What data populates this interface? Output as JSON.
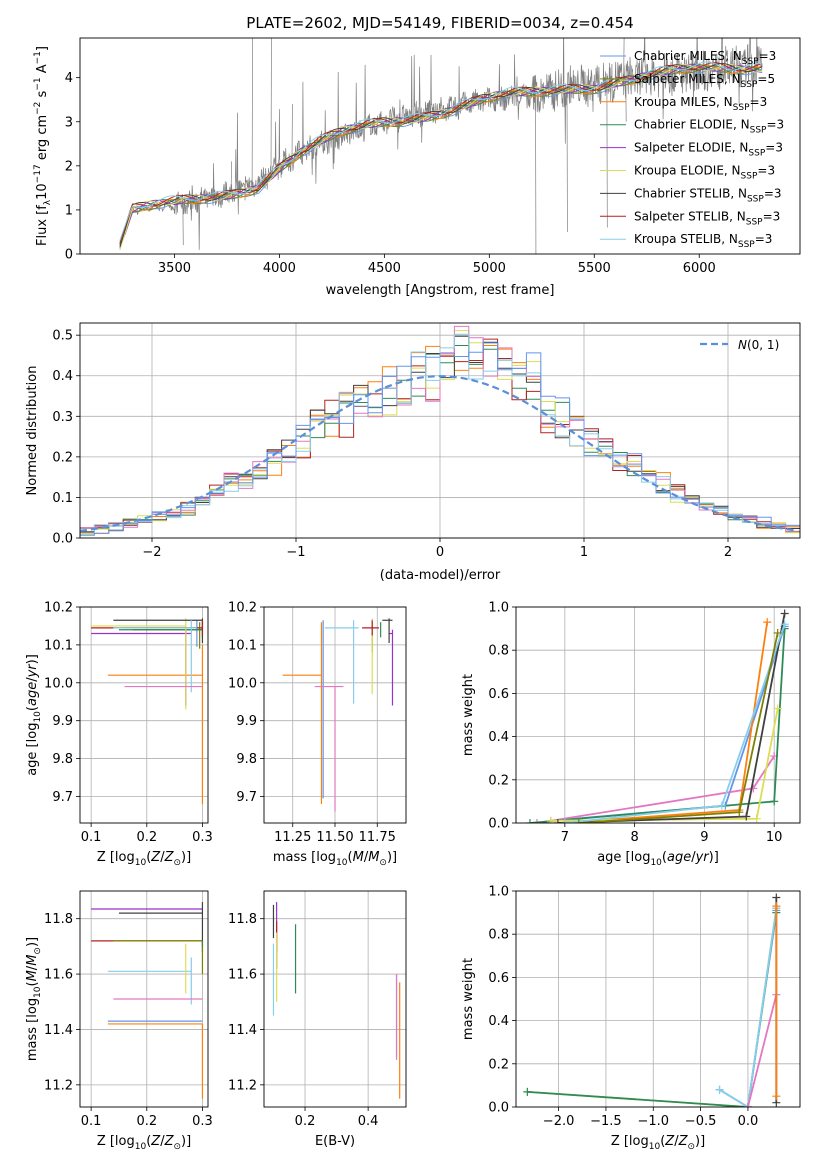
{
  "colors": {
    "Chabrier MILES": "#6495ed",
    "Salpeter MILES": "#808000",
    "Kroupa MILES": "#ff7f0e",
    "Chabrier ELODIE": "#2e8b57",
    "Salpeter ELODIE": "#9932cc",
    "Kroupa ELODIE": "#dddd55",
    "Chabrier STELIB": "#404040",
    "Salpeter STELIB": "#b22222",
    "Kroupa STELIB": "#87ceeb",
    "pink": "#e377c2",
    "dashed": "#5b8fd9",
    "spectrum": "#808080"
  },
  "chart_data": [
    {
      "id": "spectrum",
      "type": "line",
      "title": "PLATE=2602, MJD=54149, FIBERID=0034, z=0.454",
      "xlabel": "wavelength [Angstrom, rest frame]",
      "ylabel": "Flux [f_λ 10^{-17} erg cm^{-2} s^{-1} A^{-1}]",
      "xlim": [
        3050,
        6480
      ],
      "ylim": [
        0,
        4.9
      ],
      "xticks": [
        3500,
        4000,
        4500,
        5000,
        5500,
        6000
      ],
      "yticks": [
        0,
        1,
        2,
        3,
        4
      ],
      "legend": {
        "placement": "top-right",
        "entries": [
          {
            "pre": "Chabrier MILES, N",
            "sub": "SSP",
            "post": "=3",
            "color": "#6495ed"
          },
          {
            "pre": "Salpeter MILES, N",
            "sub": "SSP",
            "post": "=5",
            "color": "#808000"
          },
          {
            "pre": "Kroupa MILES, N",
            "sub": "SSP",
            "post": "=3",
            "color": "#ff7f0e"
          },
          {
            "pre": "Chabrier ELODIE, N",
            "sub": "SSP",
            "post": "=3",
            "color": "#2e8b57"
          },
          {
            "pre": "Salpeter ELODIE, N",
            "sub": "SSP",
            "post": "=3",
            "color": "#9932cc"
          },
          {
            "pre": "Kroupa ELODIE, N",
            "sub": "SSP",
            "post": "=3",
            "color": "#dddd55"
          },
          {
            "pre": "Chabrier STELIB, N",
            "sub": "SSP",
            "post": "=3",
            "color": "#404040"
          },
          {
            "pre": "Salpeter STELIB, N",
            "sub": "SSP",
            "post": "=3",
            "color": "#b22222"
          },
          {
            "pre": "Kroupa STELIB, N",
            "sub": "SSP",
            "post": "=3",
            "color": "#87ceeb"
          }
        ]
      },
      "data_anchors": {
        "x": [
          3240,
          3300,
          3400,
          3500,
          3600,
          3700,
          3800,
          3900,
          4000,
          4100,
          4200,
          4300,
          4400,
          4500,
          4600,
          4700,
          4800,
          4900,
          5000,
          5100,
          5200,
          5300,
          5400,
          5500,
          5600,
          5700,
          5800,
          5900,
          6000,
          6100,
          6200,
          6300
        ],
        "y": [
          0.2,
          1.0,
          1.05,
          1.1,
          1.2,
          1.3,
          1.45,
          1.6,
          2.0,
          2.3,
          2.5,
          2.7,
          2.85,
          3.0,
          3.1,
          3.2,
          3.3,
          3.4,
          3.5,
          3.55,
          3.6,
          3.7,
          3.8,
          3.85,
          3.95,
          4.0,
          4.05,
          4.1,
          4.15,
          4.2,
          4.25,
          4.3
        ]
      }
    },
    {
      "id": "residuals",
      "type": "line",
      "xlabel": "(data-model)/error",
      "ylabel": "Normed distribution",
      "xlim": [
        -2.5,
        2.5
      ],
      "ylim": [
        0,
        0.53
      ],
      "xticks": [
        -2,
        -1,
        0,
        1,
        2
      ],
      "yticks": [
        0.0,
        0.1,
        0.2,
        0.3,
        0.4,
        0.5
      ],
      "grid": true,
      "legend": {
        "placement": "top-right",
        "label": "N(0,1)"
      },
      "bin_width": 0.1
    },
    {
      "id": "age-vs-Z",
      "type": "scatter",
      "xlabel": "Z [log10(Z/Z☉)]",
      "ylabel": "age  [log10(age/yr)]",
      "xlim": [
        0.08,
        0.31
      ],
      "ylim": [
        9.63,
        10.2
      ],
      "xticks": [
        0.1,
        0.2,
        0.3
      ],
      "yticks": [
        9.7,
        9.8,
        9.9,
        10.0,
        10.1,
        10.2
      ],
      "grid": true,
      "points": [
        {
          "model": "Chabrier MILES",
          "x": 0.29,
          "y": 10.145,
          "xerr": [
            0.13,
            0.01
          ],
          "yerr": [
            0.05,
            0.02
          ]
        },
        {
          "model": "Salpeter MILES",
          "x": 0.295,
          "y": 10.14,
          "xerr": [
            0.12,
            0.005
          ],
          "yerr": [
            0.05,
            0.02
          ]
        },
        {
          "model": "Kroupa MILES",
          "x": 0.3,
          "y": 10.02,
          "xerr": [
            0.17,
            0.0
          ],
          "yerr": [
            0.34,
            0.08
          ]
        },
        {
          "model": "Chabrier ELODIE",
          "x": 0.3,
          "y": 10.14,
          "xerr": [
            0.15,
            0.0
          ],
          "yerr": [
            0.02,
            0.02
          ]
        },
        {
          "model": "Salpeter ELODIE",
          "x": 0.27,
          "y": 10.13,
          "xerr": [
            0.17,
            0.01
          ],
          "yerr": [
            0.19,
            0.01
          ]
        },
        {
          "model": "Kroupa ELODIE",
          "x": 0.27,
          "y": 10.15,
          "xerr": [
            0.17,
            0.0
          ],
          "yerr": [
            0.22,
            0.02
          ]
        },
        {
          "model": "Chabrier STELIB",
          "x": 0.3,
          "y": 10.165,
          "xerr": [
            0.16,
            0.0
          ],
          "yerr": [
            0.06,
            0.005
          ]
        },
        {
          "model": "Salpeter STELIB",
          "x": 0.3,
          "y": 10.145,
          "xerr": [
            0.2,
            0.0
          ],
          "yerr": [
            0.02,
            0.02
          ]
        },
        {
          "model": "Kroupa STELIB",
          "x": 0.28,
          "y": 10.145,
          "xerr": [
            0.14,
            0.01
          ],
          "yerr": [
            0.17,
            0.02
          ]
        },
        {
          "model": "pink",
          "x": 0.3,
          "y": 9.99,
          "xerr": [
            0.14,
            0.0
          ],
          "yerr": [
            0.0,
            0.0
          ]
        }
      ]
    },
    {
      "id": "age-vs-mass",
      "type": "scatter",
      "xlabel": "mass [log10(M/M☉)]",
      "ylabel": "",
      "xlim": [
        11.08,
        11.92
      ],
      "ylim": [
        9.63,
        10.2
      ],
      "xticks": [
        11.25,
        11.5,
        11.75
      ],
      "yticks": [
        9.7,
        9.8,
        9.9,
        10.0,
        10.1,
        10.2
      ],
      "grid": true,
      "points": [
        {
          "model": "Chabrier MILES",
          "x": 11.43,
          "y": 10.145,
          "xerr": [
            0.0,
            0.0
          ],
          "yerr": [
            0.45,
            0.02
          ]
        },
        {
          "model": "Salpeter MILES",
          "x": 11.72,
          "y": 10.14,
          "xerr": [
            0.0,
            0.0
          ],
          "yerr": [
            0.06,
            0.02
          ]
        },
        {
          "model": "Kroupa MILES",
          "x": 11.42,
          "y": 10.02,
          "xerr": [
            0.23,
            0.0
          ],
          "yerr": [
            0.34,
            0.14
          ]
        },
        {
          "model": "Chabrier ELODIE",
          "x": 11.77,
          "y": 10.14,
          "xerr": [
            0.0,
            0.0
          ],
          "yerr": [
            0.02,
            0.02
          ]
        },
        {
          "model": "Salpeter ELODIE",
          "x": 11.84,
          "y": 10.13,
          "xerr": [
            0.02,
            0.0
          ],
          "yerr": [
            0.19,
            0.01
          ]
        },
        {
          "model": "Kroupa ELODIE",
          "x": 11.72,
          "y": 10.15,
          "xerr": [
            0.0,
            0.0
          ],
          "yerr": [
            0.18,
            0.02
          ]
        },
        {
          "model": "Chabrier STELIB",
          "x": 11.82,
          "y": 10.165,
          "xerr": [
            0.04,
            0.02
          ],
          "yerr": [
            0.06,
            0.005
          ]
        },
        {
          "model": "Salpeter STELIB",
          "x": 11.72,
          "y": 10.145,
          "xerr": [
            0.06,
            0.04
          ],
          "yerr": [
            0.02,
            0.02
          ]
        },
        {
          "model": "Kroupa STELIB",
          "x": 11.61,
          "y": 10.145,
          "xerr": [
            0.17,
            0.03
          ],
          "yerr": [
            0.2,
            0.02
          ]
        },
        {
          "model": "pink",
          "x": 11.5,
          "y": 9.99,
          "xerr": [
            0.12,
            0.05
          ],
          "yerr": [
            0.33,
            0.0
          ]
        }
      ]
    },
    {
      "id": "weight-vs-age",
      "type": "line",
      "xlabel": "age  [log10(age/yr)]",
      "ylabel": "mass weight",
      "xlim": [
        6.3,
        10.37
      ],
      "ylim": [
        0,
        1.0
      ],
      "xticks": [
        7,
        8,
        9,
        10
      ],
      "yticks": [
        0.0,
        0.2,
        0.4,
        0.6,
        0.8,
        1.0
      ],
      "grid": true,
      "series": [
        {
          "model": "Chabrier MILES",
          "x": [
            6.8,
            9.3,
            10.15
          ],
          "y": [
            0.01,
            0.08,
            0.91
          ]
        },
        {
          "model": "Kroupa MILES",
          "x": [
            7.0,
            9.5,
            9.9
          ],
          "y": [
            0.0,
            0.06,
            0.93
          ]
        },
        {
          "model": "pink",
          "x": [
            6.6,
            9.7,
            10.0
          ],
          "y": [
            0.0,
            0.16,
            0.31
          ]
        },
        {
          "model": "Chabrier ELODIE",
          "x": [
            6.5,
            10.0,
            10.15
          ],
          "y": [
            0.0,
            0.1,
            0.9
          ]
        },
        {
          "model": "Kroupa ELODIE",
          "x": [
            6.8,
            9.75,
            10.05
          ],
          "y": [
            0.01,
            0.02,
            0.53
          ]
        },
        {
          "model": "Chabrier STELIB",
          "x": [
            6.9,
            9.6,
            10.15
          ],
          "y": [
            0.0,
            0.03,
            0.97
          ]
        },
        {
          "model": "Kroupa STELIB",
          "x": [
            7.0,
            9.25,
            10.15
          ],
          "y": [
            0.0,
            0.08,
            0.92
          ]
        },
        {
          "model": "Salpeter MILES",
          "x": [
            7.2,
            9.5,
            10.05
          ],
          "y": [
            0.0,
            0.05,
            0.88
          ]
        }
      ]
    },
    {
      "id": "mass-vs-Z",
      "type": "scatter",
      "xlabel": "Z [log10(Z/Z☉)]",
      "ylabel": "mass [log10(M/M☉)]",
      "xlim": [
        0.08,
        0.31
      ],
      "ylim": [
        11.12,
        11.9
      ],
      "xticks": [
        0.1,
        0.2,
        0.3
      ],
      "yticks": [
        11.2,
        11.4,
        11.6,
        11.8
      ],
      "grid": true,
      "points": [
        {
          "model": "Salpeter ELODIE",
          "x": 0.3,
          "y": 11.835,
          "xerr": [
            0.2,
            0.0
          ],
          "yerr": [
            0.0,
            0.0
          ]
        },
        {
          "model": "Chabrier STELIB",
          "x": 0.3,
          "y": 11.82,
          "xerr": [
            0.15,
            0.0
          ],
          "yerr": [
            0.14,
            0.04
          ]
        },
        {
          "model": "Salpeter STELIB",
          "x": 0.3,
          "y": 11.72,
          "xerr": [
            0.2,
            0.0
          ],
          "yerr": [
            0.0,
            0.0
          ]
        },
        {
          "model": "Salpeter MILES",
          "x": 0.3,
          "y": 11.72,
          "xerr": [
            0.16,
            0.0
          ],
          "yerr": [
            0.12,
            0.0
          ]
        },
        {
          "model": "Kroupa STELIB",
          "x": 0.28,
          "y": 11.61,
          "xerr": [
            0.15,
            0.0
          ],
          "yerr": [
            0.12,
            0.05
          ]
        },
        {
          "model": "pink",
          "x": 0.3,
          "y": 11.51,
          "xerr": [
            0.16,
            0.0
          ],
          "yerr": [
            0.0,
            0.0
          ]
        },
        {
          "model": "Chabrier MILES",
          "x": 0.3,
          "y": 11.43,
          "xerr": [
            0.17,
            0.0
          ],
          "yerr": [
            0.0,
            0.0
          ]
        },
        {
          "model": "Kroupa MILES",
          "x": 0.3,
          "y": 11.42,
          "xerr": [
            0.17,
            0.0
          ],
          "yerr": [
            0.27,
            0.0
          ]
        },
        {
          "model": "Kroupa ELODIE",
          "x": 0.27,
          "y": 11.6,
          "xerr": [
            0.0,
            0.0
          ],
          "yerr": [
            0.07,
            0.11
          ]
        },
        {
          "model": "Chabrier ELODIE",
          "x": 0.3,
          "y": 11.72,
          "xerr": [
            0.0,
            0.0
          ],
          "yerr": [
            0.02,
            0.0
          ]
        }
      ]
    },
    {
      "id": "mass-vs-EBV",
      "type": "scatter",
      "xlabel": "E(B-V)",
      "ylabel": "",
      "xlim": [
        0.07,
        0.52
      ],
      "ylim": [
        11.12,
        11.9
      ],
      "xticks": [
        0.2,
        0.4
      ],
      "yticks": [
        11.2,
        11.4,
        11.6,
        11.8
      ],
      "grid": true,
      "points": [
        {
          "model": "Salpeter ELODIE",
          "x": 0.11,
          "y": 11.76,
          "xerr": [
            0.0,
            0.0
          ],
          "yerr": [
            0.08,
            0.1
          ]
        },
        {
          "model": "Chabrier STELIB",
          "x": 0.1,
          "y": 11.8,
          "xerr": [
            0.0,
            0.0
          ],
          "yerr": [
            0.07,
            0.05
          ]
        },
        {
          "model": "Salpeter STELIB",
          "x": 0.11,
          "y": 11.72,
          "xerr": [
            0.0,
            0.0
          ],
          "yerr": [
            0.1,
            0.07
          ]
        },
        {
          "model": "Kroupa STELIB",
          "x": 0.1,
          "y": 11.61,
          "xerr": [
            0.0,
            0.0
          ],
          "yerr": [
            0.16,
            0.1
          ]
        },
        {
          "model": "Kroupa ELODIE",
          "x": 0.11,
          "y": 11.6,
          "xerr": [
            0.0,
            0.0
          ],
          "yerr": [
            0.1,
            0.15
          ]
        },
        {
          "model": "Chabrier ELODIE",
          "x": 0.17,
          "y": 11.72,
          "xerr": [
            0.0,
            0.0
          ],
          "yerr": [
            0.19,
            0.06
          ]
        },
        {
          "model": "Chabrier MILES",
          "x": 0.49,
          "y": 11.43,
          "xerr": [
            0.0,
            0.0
          ],
          "yerr": [
            0.13,
            0.17
          ]
        },
        {
          "model": "Kroupa MILES",
          "x": 0.5,
          "y": 11.42,
          "xerr": [
            0.0,
            0.0
          ],
          "yerr": [
            0.27,
            0.15
          ]
        },
        {
          "model": "pink",
          "x": 0.49,
          "y": 11.51,
          "xerr": [
            0.0,
            0.0
          ],
          "yerr": [
            0.22,
            0.09
          ]
        }
      ]
    },
    {
      "id": "weight-vs-Z",
      "type": "line",
      "xlabel": "Z [log10(Z/Z☉)]",
      "ylabel": "mass weight",
      "xlim": [
        -2.45,
        0.55
      ],
      "ylim": [
        0,
        1.0
      ],
      "xticks": [
        -2.0,
        -1.5,
        -1.0,
        -0.5,
        0.0
      ],
      "yticks": [
        0.0,
        0.2,
        0.4,
        0.6,
        0.8,
        1.0
      ],
      "grid": true,
      "series": [
        {
          "model": "Kroupa ELODIE",
          "x": [
            -2.33,
            0.0,
            0.3
          ],
          "y": [
            0.07,
            0.0,
            0.92
          ]
        },
        {
          "model": "Chabrier ELODIE",
          "x": [
            -2.33,
            0.0,
            0.3
          ],
          "y": [
            0.07,
            0.0,
            0.9
          ]
        },
        {
          "model": "Chabrier MILES",
          "x": [
            -0.3,
            0.0,
            0.3
          ],
          "y": [
            0.08,
            0.0,
            0.91
          ]
        },
        {
          "model": "Kroupa STELIB",
          "x": [
            -0.3,
            0.0,
            0.3
          ],
          "y": [
            0.08,
            0.0,
            0.92
          ]
        },
        {
          "model": "pink",
          "x": [
            0.0,
            0.3
          ],
          "y": [
            0.0,
            0.52
          ]
        },
        {
          "model": "Chabrier STELIB",
          "x": [
            0.3,
            0.3
          ],
          "y": [
            0.02,
            0.97
          ]
        },
        {
          "model": "Kroupa MILES",
          "x": [
            0.3,
            0.3
          ],
          "y": [
            0.05,
            0.93
          ]
        }
      ]
    }
  ]
}
